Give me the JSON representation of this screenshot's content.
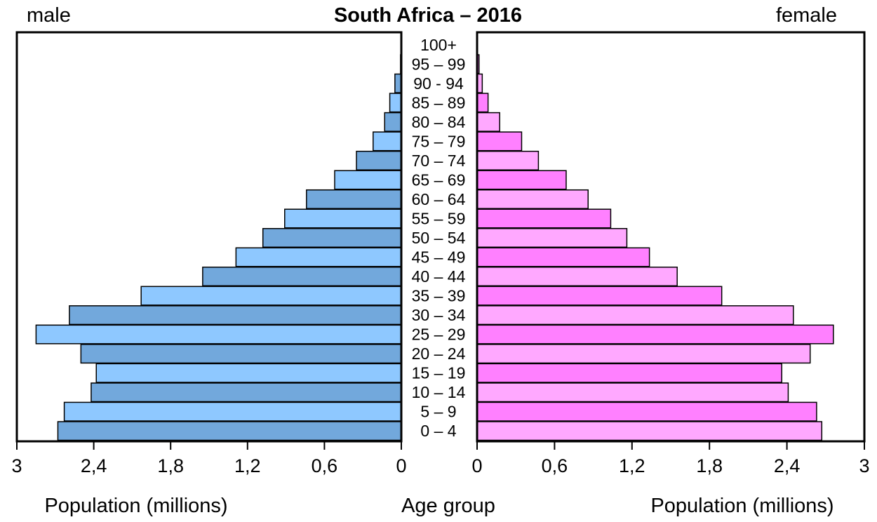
{
  "chart_data": {
    "type": "bar",
    "title": "South Africa – 2016",
    "left_panel_label": "male",
    "right_panel_label": "female",
    "xlabel_left": "Population (millions)",
    "xlabel_right": "Population (millions)",
    "center_label": "Age group",
    "xlim": [
      0,
      3
    ],
    "left_ticks": [
      "3",
      "2,4",
      "1,8",
      "1,2",
      "0,6",
      "0"
    ],
    "right_ticks": [
      "0",
      "0,6",
      "1,2",
      "1,8",
      "2,4",
      "3"
    ],
    "tick_values": [
      0,
      0.6,
      1.2,
      1.8,
      2.4,
      3
    ],
    "categories": [
      "100+",
      "95 – 99",
      "90 - 94",
      "85 – 89",
      "80 – 84",
      "75 – 79",
      "70 – 74",
      "65 – 69",
      "60 – 64",
      "55 – 59",
      "50 – 54",
      "45 – 49",
      "40 – 44",
      "35 – 39",
      "30 – 34",
      "25 – 29",
      "20 – 24",
      "15 – 19",
      "10 – 14",
      "5 – 9",
      "0 – 4"
    ],
    "series": [
      {
        "name": "male",
        "colors": [
          "#8ec8ff",
          "#72a8dc"
        ],
        "values": [
          0.002,
          0.006,
          0.05,
          0.09,
          0.13,
          0.22,
          0.35,
          0.52,
          0.74,
          0.91,
          1.08,
          1.29,
          1.55,
          2.03,
          2.59,
          2.85,
          2.5,
          2.38,
          2.42,
          2.63,
          2.68
        ]
      },
      {
        "name": "female",
        "colors": [
          "#ffa8ff",
          "#ff80ff"
        ],
        "values": [
          0.004,
          0.015,
          0.04,
          0.085,
          0.175,
          0.345,
          0.475,
          0.69,
          0.86,
          1.035,
          1.16,
          1.335,
          1.55,
          1.895,
          2.45,
          2.76,
          2.58,
          2.36,
          2.41,
          2.63,
          2.67
        ]
      }
    ]
  }
}
